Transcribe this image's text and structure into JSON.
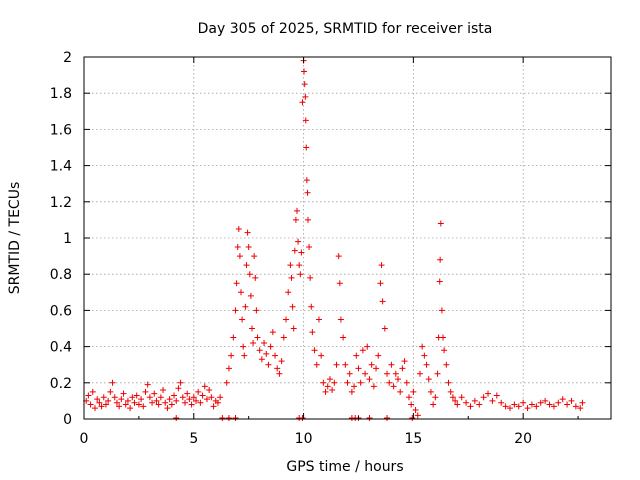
{
  "chart_data": {
    "type": "scatter",
    "title": "Day 305 of 2025, SRMTID for receiver ista",
    "xlabel": "GPS time / hours",
    "ylabel": "SRMTID / TECUs",
    "xlim": [
      0,
      24
    ],
    "ylim": [
      0,
      2
    ],
    "xticks": [
      0,
      5,
      10,
      15,
      20
    ],
    "xtick_labels": [
      "0",
      "5",
      "10",
      "15",
      "20"
    ],
    "yticks": [
      0,
      0.2,
      0.4,
      0.6,
      0.8,
      1.0,
      1.2,
      1.4,
      1.6,
      1.8,
      2.0
    ],
    "ytick_labels": [
      "0",
      "0.2",
      "0.4",
      "0.6",
      "0.8",
      "1",
      "1.2",
      "1.4",
      "1.6",
      "1.8",
      "2"
    ],
    "grid": true,
    "marker": "+",
    "series": [
      {
        "name": "SRMTID",
        "color": "#ee0000",
        "points": [
          [
            0.1,
            0.1
          ],
          [
            0.2,
            0.13
          ],
          [
            0.3,
            0.08
          ],
          [
            0.4,
            0.15
          ],
          [
            0.5,
            0.06
          ],
          [
            0.6,
            0.11
          ],
          [
            0.7,
            0.09
          ],
          [
            0.8,
            0.07
          ],
          [
            0.9,
            0.12
          ],
          [
            1.0,
            0.08
          ],
          [
            1.1,
            0.1
          ],
          [
            1.2,
            0.15
          ],
          [
            1.3,
            0.2
          ],
          [
            1.4,
            0.12
          ],
          [
            1.5,
            0.09
          ],
          [
            1.6,
            0.07
          ],
          [
            1.7,
            0.11
          ],
          [
            1.8,
            0.14
          ],
          [
            1.9,
            0.08
          ],
          [
            2.0,
            0.1
          ],
          [
            2.1,
            0.06
          ],
          [
            2.2,
            0.12
          ],
          [
            2.3,
            0.09
          ],
          [
            2.4,
            0.13
          ],
          [
            2.5,
            0.08
          ],
          [
            2.6,
            0.11
          ],
          [
            2.7,
            0.07
          ],
          [
            2.8,
            0.15
          ],
          [
            2.9,
            0.19
          ],
          [
            3.0,
            0.12
          ],
          [
            3.1,
            0.09
          ],
          [
            3.2,
            0.14
          ],
          [
            3.3,
            0.1
          ],
          [
            3.4,
            0.08
          ],
          [
            3.5,
            0.12
          ],
          [
            3.6,
            0.16
          ],
          [
            3.7,
            0.09
          ],
          [
            3.8,
            0.06
          ],
          [
            3.9,
            0.11
          ],
          [
            4.0,
            0.08
          ],
          [
            4.1,
            0.13
          ],
          [
            4.2,
            0.1
          ],
          [
            4.3,
            0.17
          ],
          [
            4.4,
            0.2
          ],
          [
            4.5,
            0.12
          ],
          [
            4.6,
            0.09
          ],
          [
            4.7,
            0.14
          ],
          [
            4.8,
            0.11
          ],
          [
            4.9,
            0.08
          ],
          [
            5.0,
            0.12
          ],
          [
            5.1,
            0.1
          ],
          [
            5.2,
            0.15
          ],
          [
            5.3,
            0.09
          ],
          [
            5.4,
            0.13
          ],
          [
            5.5,
            0.18
          ],
          [
            5.6,
            0.11
          ],
          [
            5.7,
            0.16
          ],
          [
            5.8,
            0.12
          ],
          [
            5.9,
            0.07
          ],
          [
            6.0,
            0.1
          ],
          [
            6.1,
            0.09
          ],
          [
            6.2,
            0.12
          ],
          [
            6.5,
            0.2
          ],
          [
            6.6,
            0.28
          ],
          [
            6.7,
            0.35
          ],
          [
            6.8,
            0.45
          ],
          [
            6.9,
            0.6
          ],
          [
            6.95,
            0.75
          ],
          [
            7.0,
            0.95
          ],
          [
            7.05,
            1.05
          ],
          [
            7.1,
            0.9
          ],
          [
            7.15,
            0.7
          ],
          [
            7.2,
            0.55
          ],
          [
            7.25,
            0.4
          ],
          [
            7.3,
            0.35
          ],
          [
            7.35,
            0.62
          ],
          [
            7.4,
            0.85
          ],
          [
            7.45,
            1.03
          ],
          [
            7.5,
            0.95
          ],
          [
            7.55,
            0.8
          ],
          [
            7.6,
            0.68
          ],
          [
            7.65,
            0.5
          ],
          [
            7.7,
            0.42
          ],
          [
            7.75,
            0.9
          ],
          [
            7.8,
            0.78
          ],
          [
            7.85,
            0.6
          ],
          [
            7.9,
            0.45
          ],
          [
            8.0,
            0.38
          ],
          [
            8.1,
            0.33
          ],
          [
            8.2,
            0.42
          ],
          [
            8.3,
            0.36
          ],
          [
            8.4,
            0.3
          ],
          [
            8.5,
            0.4
          ],
          [
            8.6,
            0.48
          ],
          [
            8.7,
            0.35
          ],
          [
            8.8,
            0.28
          ],
          [
            8.9,
            0.25
          ],
          [
            9.0,
            0.32
          ],
          [
            9.1,
            0.45
          ],
          [
            9.2,
            0.55
          ],
          [
            9.3,
            0.7
          ],
          [
            9.4,
            0.85
          ],
          [
            9.45,
            0.78
          ],
          [
            9.5,
            0.62
          ],
          [
            9.55,
            0.5
          ],
          [
            9.6,
            0.93
          ],
          [
            9.65,
            1.1
          ],
          [
            9.7,
            1.15
          ],
          [
            9.75,
            0.98
          ],
          [
            9.8,
            0.85
          ],
          [
            9.85,
            0.8
          ],
          [
            9.9,
            0.92
          ],
          [
            9.95,
            1.75
          ],
          [
            10.0,
            1.98
          ],
          [
            10.02,
            1.92
          ],
          [
            10.05,
            1.85
          ],
          [
            10.08,
            1.78
          ],
          [
            10.1,
            1.65
          ],
          [
            10.12,
            1.5
          ],
          [
            10.15,
            1.32
          ],
          [
            10.18,
            1.25
          ],
          [
            10.2,
            1.1
          ],
          [
            10.25,
            0.95
          ],
          [
            10.3,
            0.78
          ],
          [
            10.35,
            0.62
          ],
          [
            10.4,
            0.48
          ],
          [
            10.5,
            0.38
          ],
          [
            10.6,
            0.3
          ],
          [
            10.7,
            0.55
          ],
          [
            10.8,
            0.35
          ],
          [
            10.9,
            0.2
          ],
          [
            11.0,
            0.15
          ],
          [
            11.1,
            0.18
          ],
          [
            11.2,
            0.22
          ],
          [
            11.3,
            0.16
          ],
          [
            11.4,
            0.2
          ],
          [
            11.5,
            0.3
          ],
          [
            11.6,
            0.9
          ],
          [
            11.65,
            0.75
          ],
          [
            11.7,
            0.55
          ],
          [
            11.8,
            0.45
          ],
          [
            11.9,
            0.3
          ],
          [
            12.0,
            0.2
          ],
          [
            12.1,
            0.25
          ],
          [
            12.2,
            0.15
          ],
          [
            12.3,
            0.18
          ],
          [
            12.4,
            0.35
          ],
          [
            12.5,
            0.28
          ],
          [
            12.6,
            0.2
          ],
          [
            12.7,
            0.38
          ],
          [
            12.8,
            0.25
          ],
          [
            12.9,
            0.4
          ],
          [
            13.0,
            0.22
          ],
          [
            13.1,
            0.3
          ],
          [
            13.2,
            0.18
          ],
          [
            13.3,
            0.28
          ],
          [
            13.4,
            0.35
          ],
          [
            13.5,
            0.75
          ],
          [
            13.55,
            0.85
          ],
          [
            13.6,
            0.65
          ],
          [
            13.7,
            0.5
          ],
          [
            13.8,
            0.25
          ],
          [
            13.9,
            0.2
          ],
          [
            14.0,
            0.3
          ],
          [
            14.1,
            0.18
          ],
          [
            14.2,
            0.25
          ],
          [
            14.3,
            0.22
          ],
          [
            14.4,
            0.15
          ],
          [
            14.5,
            0.28
          ],
          [
            14.6,
            0.32
          ],
          [
            14.7,
            0.2
          ],
          [
            14.8,
            0.12
          ],
          [
            14.9,
            0.08
          ],
          [
            15.0,
            0.15
          ],
          [
            15.1,
            0.05
          ],
          [
            15.2,
            0.02
          ],
          [
            15.3,
            0.25
          ],
          [
            15.4,
            0.4
          ],
          [
            15.5,
            0.35
          ],
          [
            15.6,
            0.3
          ],
          [
            15.7,
            0.22
          ],
          [
            15.8,
            0.15
          ],
          [
            15.9,
            0.08
          ],
          [
            16.0,
            0.12
          ],
          [
            16.1,
            0.25
          ],
          [
            16.15,
            0.45
          ],
          [
            16.2,
            0.76
          ],
          [
            16.22,
            0.88
          ],
          [
            16.25,
            1.08
          ],
          [
            16.3,
            0.6
          ],
          [
            16.35,
            0.45
          ],
          [
            16.4,
            0.38
          ],
          [
            16.5,
            0.3
          ],
          [
            16.6,
            0.2
          ],
          [
            16.7,
            0.15
          ],
          [
            16.8,
            0.12
          ],
          [
            16.9,
            0.1
          ],
          [
            17.0,
            0.08
          ],
          [
            17.2,
            0.12
          ],
          [
            17.4,
            0.09
          ],
          [
            17.6,
            0.07
          ],
          [
            17.8,
            0.1
          ],
          [
            18.0,
            0.08
          ],
          [
            18.2,
            0.12
          ],
          [
            18.4,
            0.14
          ],
          [
            18.6,
            0.1
          ],
          [
            18.8,
            0.13
          ],
          [
            19.0,
            0.09
          ],
          [
            19.2,
            0.07
          ],
          [
            19.4,
            0.06
          ],
          [
            19.6,
            0.08
          ],
          [
            19.8,
            0.07
          ],
          [
            20.0,
            0.09
          ],
          [
            20.2,
            0.06
          ],
          [
            20.4,
            0.08
          ],
          [
            20.6,
            0.07
          ],
          [
            20.8,
            0.09
          ],
          [
            21.0,
            0.1
          ],
          [
            21.2,
            0.08
          ],
          [
            21.4,
            0.07
          ],
          [
            21.6,
            0.09
          ],
          [
            21.8,
            0.11
          ],
          [
            22.0,
            0.08
          ],
          [
            22.2,
            0.1
          ],
          [
            22.4,
            0.07
          ],
          [
            22.6,
            0.06
          ],
          [
            22.7,
            0.09
          ],
          [
            4.2,
            0.0
          ],
          [
            6.3,
            0.0
          ],
          [
            6.6,
            0.0
          ],
          [
            6.9,
            0.0
          ],
          [
            9.8,
            0.0
          ],
          [
            9.95,
            0.0
          ],
          [
            12.2,
            0.0
          ],
          [
            12.35,
            0.0
          ],
          [
            12.5,
            0.0
          ],
          [
            13.0,
            0.0
          ],
          [
            13.8,
            0.0
          ],
          [
            14.95,
            0.0
          ]
        ]
      }
    ]
  }
}
